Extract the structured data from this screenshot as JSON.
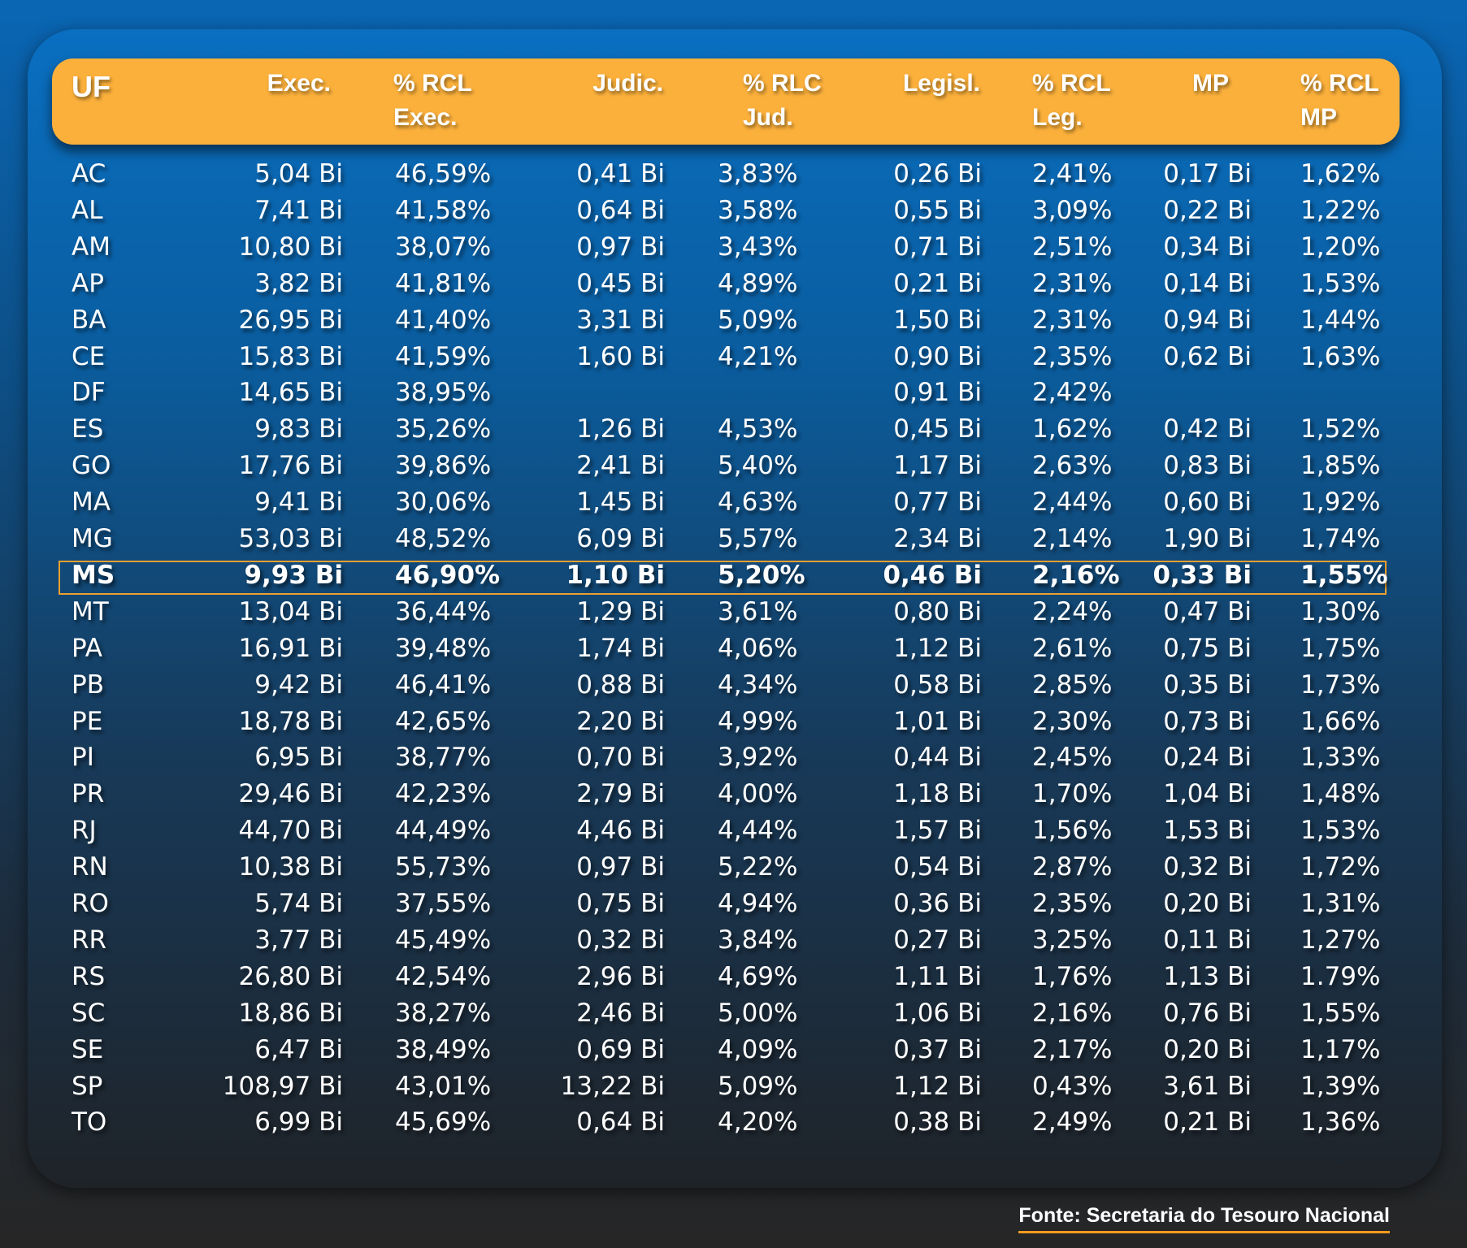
{
  "chart_data": {
    "type": "table",
    "columns": [
      "UF",
      "Exec.",
      "% RCL Exec.",
      "Judic.",
      "% RLC Jud.",
      "Legisl.",
      "% RCL Leg.",
      "MP",
      "% RCL MP"
    ],
    "header_lines": [
      [
        "UF"
      ],
      [
        "Exec."
      ],
      [
        "% RCL",
        "Exec."
      ],
      [
        "Judic."
      ],
      [
        "% RLC",
        "Jud."
      ],
      [
        "Legisl."
      ],
      [
        "% RCL",
        "Leg."
      ],
      [
        "MP"
      ],
      [
        "% RCL",
        "MP"
      ]
    ],
    "highlighted_row": "MS",
    "rows": [
      [
        "AC",
        "5,04 Bi",
        "46,59%",
        "0,41 Bi",
        "3,83%",
        "0,26 Bi",
        "2,41%",
        "0,17 Bi",
        "1,62%"
      ],
      [
        "AL",
        "7,41 Bi",
        "41,58%",
        "0,64 Bi",
        "3,58%",
        "0,55 Bi",
        "3,09%",
        "0,22 Bi",
        "1,22%"
      ],
      [
        "AM",
        "10,80 Bi",
        "38,07%",
        "0,97 Bi",
        "3,43%",
        "0,71 Bi",
        "2,51%",
        "0,34 Bi",
        "1,20%"
      ],
      [
        "AP",
        "3,82 Bi",
        "41,81%",
        "0,45 Bi",
        "4,89%",
        "0,21 Bi",
        "2,31%",
        "0,14 Bi",
        "1,53%"
      ],
      [
        "BA",
        "26,95 Bi",
        "41,40%",
        "3,31 Bi",
        "5,09%",
        "1,50 Bi",
        "2,31%",
        "0,94 Bi",
        "1,44%"
      ],
      [
        "CE",
        "15,83 Bi",
        "41,59%",
        "1,60 Bi",
        "4,21%",
        "0,90 Bi",
        "2,35%",
        "0,62 Bi",
        "1,63%"
      ],
      [
        "DF",
        "14,65 Bi",
        "38,95%",
        "",
        "",
        "0,91 Bi",
        "2,42%",
        "",
        ""
      ],
      [
        "ES",
        "9,83 Bi",
        "35,26%",
        "1,26 Bi",
        "4,53%",
        "0,45 Bi",
        "1,62%",
        "0,42 Bi",
        "1,52%"
      ],
      [
        "GO",
        "17,76 Bi",
        "39,86%",
        "2,41 Bi",
        "5,40%",
        "1,17 Bi",
        "2,63%",
        "0,83 Bi",
        "1,85%"
      ],
      [
        "MA",
        "9,41 Bi",
        "30,06%",
        "1,45 Bi",
        "4,63%",
        "0,77 Bi",
        "2,44%",
        "0,60 Bi",
        "1,92%"
      ],
      [
        "MG",
        "53,03 Bi",
        "48,52%",
        "6,09 Bi",
        "5,57%",
        "2,34 Bi",
        "2,14%",
        "1,90 Bi",
        "1,74%"
      ],
      [
        "MS",
        "9,93 Bi",
        "46,90%",
        "1,10 Bi",
        "5,20%",
        "0,46 Bi",
        "2,16%",
        "0,33 Bi",
        "1,55%"
      ],
      [
        "MT",
        "13,04 Bi",
        "36,44%",
        "1,29 Bi",
        "3,61%",
        "0,80 Bi",
        "2,24%",
        "0,47 Bi",
        "1,30%"
      ],
      [
        "PA",
        "16,91 Bi",
        "39,48%",
        "1,74 Bi",
        "4,06%",
        "1,12 Bi",
        "2,61%",
        "0,75 Bi",
        "1,75%"
      ],
      [
        "PB",
        "9,42 Bi",
        "46,41%",
        "0,88 Bi",
        "4,34%",
        "0,58 Bi",
        "2,85%",
        "0,35 Bi",
        "1,73%"
      ],
      [
        "PE",
        "18,78 Bi",
        "42,65%",
        "2,20 Bi",
        "4,99%",
        "1,01 Bi",
        "2,30%",
        "0,73 Bi",
        "1,66%"
      ],
      [
        "PI",
        "6,95 Bi",
        "38,77%",
        "0,70 Bi",
        "3,92%",
        "0,44 Bi",
        "2,45%",
        "0,24 Bi",
        "1,33%"
      ],
      [
        "PR",
        "29,46 Bi",
        "42,23%",
        "2,79 Bi",
        "4,00%",
        "1,18 Bi",
        "1,70%",
        "1,04 Bi",
        "1,48%"
      ],
      [
        "RJ",
        "44,70 Bi",
        "44,49%",
        "4,46 Bi",
        "4,44%",
        "1,57 Bi",
        "1,56%",
        "1,53 Bi",
        "1,53%"
      ],
      [
        "RN",
        "10,38 Bi",
        "55,73%",
        "0,97 Bi",
        "5,22%",
        "0,54 Bi",
        "2,87%",
        "0,32 Bi",
        "1,72%"
      ],
      [
        "RO",
        "5,74 Bi",
        "37,55%",
        "0,75 Bi",
        "4,94%",
        "0,36 Bi",
        "2,35%",
        "0,20 Bi",
        "1,31%"
      ],
      [
        "RR",
        "3,77 Bi",
        "45,49%",
        "0,32 Bi",
        "3,84%",
        "0,27 Bi",
        "3,25%",
        "0,11 Bi",
        "1,27%"
      ],
      [
        "RS",
        "26,80 Bi",
        "42,54%",
        "2,96 Bi",
        "4,69%",
        "1,11 Bi",
        "1,76%",
        "1,13 Bi",
        "1.79%"
      ],
      [
        "SC",
        "18,86 Bi",
        "38,27%",
        "2,46 Bi",
        "5,00%",
        "1,06 Bi",
        "2,16%",
        "0,76 Bi",
        "1,55%"
      ],
      [
        "SE",
        "6,47 Bi",
        "38,49%",
        "0,69 Bi",
        "4,09%",
        "0,37 Bi",
        "2,17%",
        "0,20 Bi",
        "1,17%"
      ],
      [
        "SP",
        "108,97 Bi",
        "43,01%",
        "13,22 Bi",
        "5,09%",
        "1,12 Bi",
        "0,43%",
        "3,61 Bi",
        "1,39%"
      ],
      [
        "TO",
        "6,99 Bi",
        "45,69%",
        "0,64 Bi",
        "4,20%",
        "0,38 Bi",
        "2,49%",
        "0,21 Bi",
        "1,36%"
      ]
    ]
  },
  "source": "Fonte: Secretaria do Tesouro Nacional",
  "colors": {
    "header_bg": "#fbb03b",
    "highlight_border": "#f0a030",
    "text": "#ffffff",
    "source_underline": "#f39a1f"
  }
}
